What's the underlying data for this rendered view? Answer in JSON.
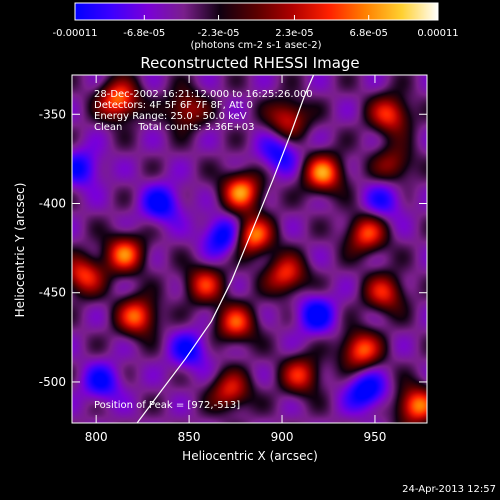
{
  "chart_data": {
    "type": "heatmap",
    "title": "Reconstructed RHESSI Image",
    "xlabel": "Heliocentric X (arcsec)",
    "ylabel": "Heliocentric Y (arcsec)",
    "xlim": [
      787,
      978
    ],
    "ylim": [
      -523,
      -328
    ],
    "x_ticks": [
      800,
      850,
      900,
      950
    ],
    "y_ticks": [
      -350,
      -400,
      -450,
      -500
    ],
    "x_tick_labels": [
      "800",
      "850",
      "900",
      "950"
    ],
    "y_tick_labels": [
      "-350",
      "-400",
      "-450",
      "-500"
    ],
    "colorbar": {
      "min": -0.00011,
      "max": 0.00011,
      "ticks": [
        -0.00011,
        -6.8e-05,
        -2.3e-05,
        2.3e-05,
        6.8e-05,
        0.00011
      ],
      "tick_labels": [
        "-0.00011",
        "-6.8e-05",
        "-2.3e-05",
        "2.3e-05",
        "6.8e-05",
        "0.00011"
      ],
      "units_label": "(photons cm-2 s-1 asec-2)",
      "colormap": [
        "#0000ff",
        "#3c00ff",
        "#7a00d8",
        "#7a1f8c",
        "#100010",
        "#5a0000",
        "#b00000",
        "#ff2000",
        "#ff8000",
        "#ffd030",
        "#ffffff"
      ]
    },
    "annotations": [
      "28-Dec-2002 16:21:12.000 to 16:25:26.000",
      "Detectors: 4F 5F 6F 7F 8F, Att 0",
      "Energy Range: 25.0 - 50.0 keV",
      "Clean     Total counts: 3.36E+03",
      "Position of Peak = [972,-513]"
    ],
    "limb_curve": [
      [
        822,
        -523
      ],
      [
        835,
        -505
      ],
      [
        848,
        -487
      ],
      [
        862,
        -466
      ],
      [
        873,
        -443
      ],
      [
        884,
        -415
      ],
      [
        895,
        -387
      ],
      [
        905,
        -360
      ],
      [
        912,
        -340
      ],
      [
        917,
        -328
      ]
    ],
    "peak_position": [
      972,
      -513
    ],
    "sources": [
      {
        "x": 812,
        "y": -342,
        "v": 0.00011
      },
      {
        "x": 815,
        "y": -428,
        "v": 0.0001
      },
      {
        "x": 793,
        "y": -440,
        "v": 9e-05
      },
      {
        "x": 848,
        "y": -347,
        "v": 7e-05
      },
      {
        "x": 903,
        "y": -352,
        "v": 8e-05
      },
      {
        "x": 958,
        "y": -350,
        "v": 9e-05
      },
      {
        "x": 922,
        "y": -383,
        "v": 0.00011
      },
      {
        "x": 878,
        "y": -393,
        "v": 0.00011
      },
      {
        "x": 884,
        "y": -418,
        "v": 0.00011
      },
      {
        "x": 945,
        "y": -417,
        "v": 9e-05
      },
      {
        "x": 955,
        "y": -450,
        "v": 8e-05
      },
      {
        "x": 902,
        "y": -440,
        "v": 9e-05
      },
      {
        "x": 858,
        "y": -445,
        "v": 8e-05
      },
      {
        "x": 822,
        "y": -463,
        "v": 0.0001
      },
      {
        "x": 875,
        "y": -467,
        "v": 9e-05
      },
      {
        "x": 942,
        "y": -482,
        "v": 0.0001
      },
      {
        "x": 910,
        "y": -496,
        "v": 8e-05
      },
      {
        "x": 872,
        "y": -505,
        "v": 8e-05
      },
      {
        "x": 972,
        "y": -513,
        "v": 0.00011
      },
      {
        "x": 960,
        "y": -378,
        "v": 6e-05
      },
      {
        "x": 835,
        "y": -400,
        "v": -7e-05
      },
      {
        "x": 868,
        "y": -418,
        "v": -8e-05
      },
      {
        "x": 898,
        "y": -372,
        "v": -6e-05
      },
      {
        "x": 803,
        "y": -500,
        "v": -6e-05
      },
      {
        "x": 945,
        "y": -505,
        "v": -8e-05
      },
      {
        "x": 918,
        "y": -462,
        "v": -7e-05
      },
      {
        "x": 850,
        "y": -482,
        "v": -6e-05
      },
      {
        "x": 955,
        "y": -398,
        "v": -5e-05
      },
      {
        "x": 792,
        "y": -380,
        "v": -6e-05
      }
    ]
  },
  "footer": {
    "date_stamp": "24-Apr-2013 12:57"
  }
}
